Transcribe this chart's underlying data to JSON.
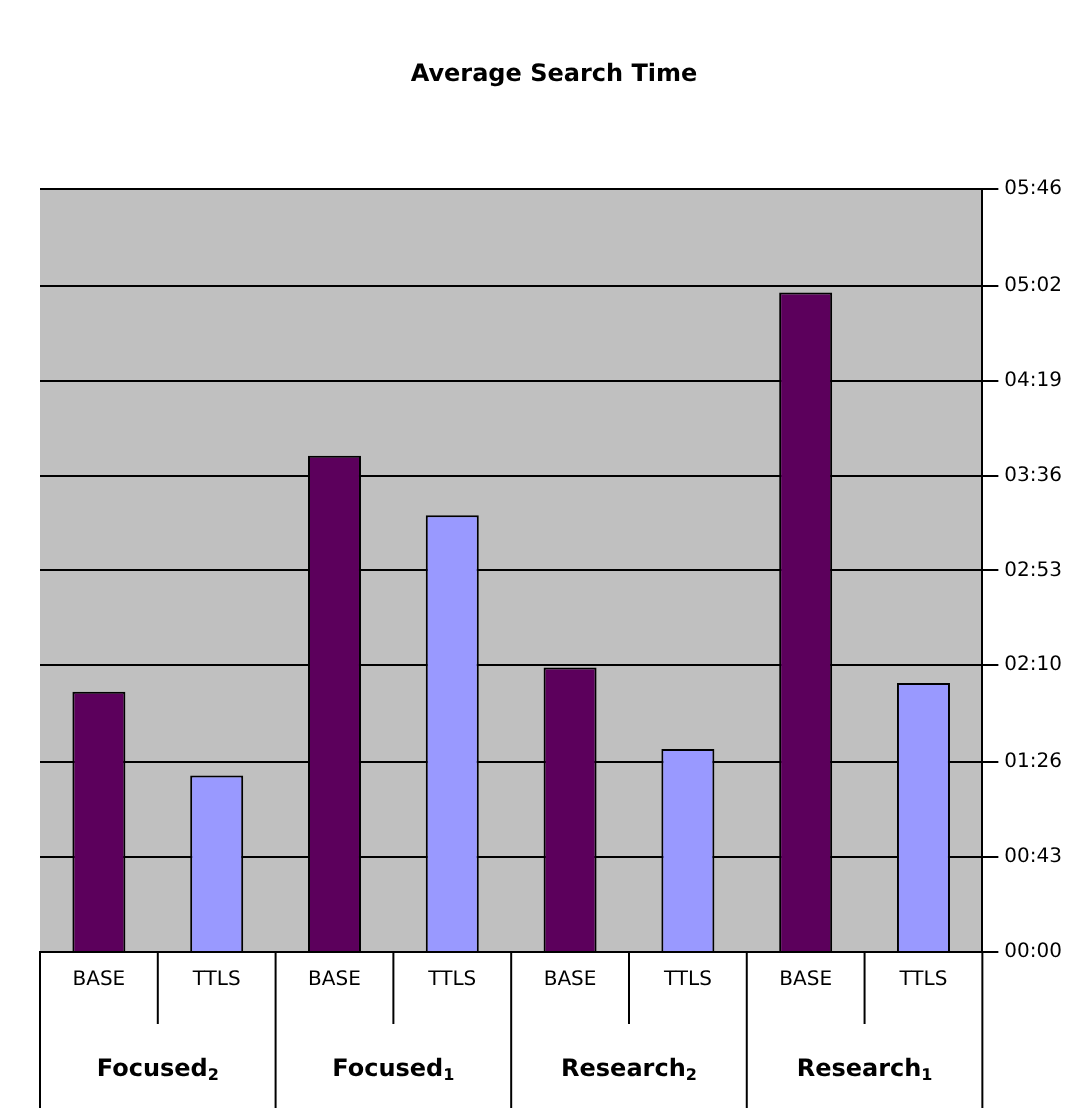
{
  "chart_data": {
    "type": "bar",
    "title": "Average Search Time",
    "categories": [
      "BASE",
      "TTLS",
      "BASE",
      "TTLS",
      "BASE",
      "TTLS",
      "BASE",
      "TTLS"
    ],
    "values": [
      118,
      80,
      225,
      198,
      129,
      92,
      299,
      122
    ],
    "colors": [
      "#5c005c",
      "#9999ff",
      "#5c005c",
      "#9999ff",
      "#5c005c",
      "#9999ff",
      "#5c005c",
      "#9999ff"
    ],
    "ylim": [
      0,
      346
    ],
    "yticks": [
      {
        "value": 0,
        "label": "00:00"
      },
      {
        "value": 43,
        "label": "00:43"
      },
      {
        "value": 86,
        "label": "01:26"
      },
      {
        "value": 130,
        "label": "02:10"
      },
      {
        "value": 173,
        "label": "02:53"
      },
      {
        "value": 216,
        "label": "03:36"
      },
      {
        "value": 259,
        "label": "04:19"
      },
      {
        "value": 302,
        "label": "05:02"
      },
      {
        "value": 346,
        "label": "05:46"
      }
    ],
    "annotations": [
      "Focused$_{2}$",
      "Focused$_{1}$",
      "Research$_{2}$",
      "Research$_{1}$"
    ],
    "grid": "y",
    "legend": false
  }
}
